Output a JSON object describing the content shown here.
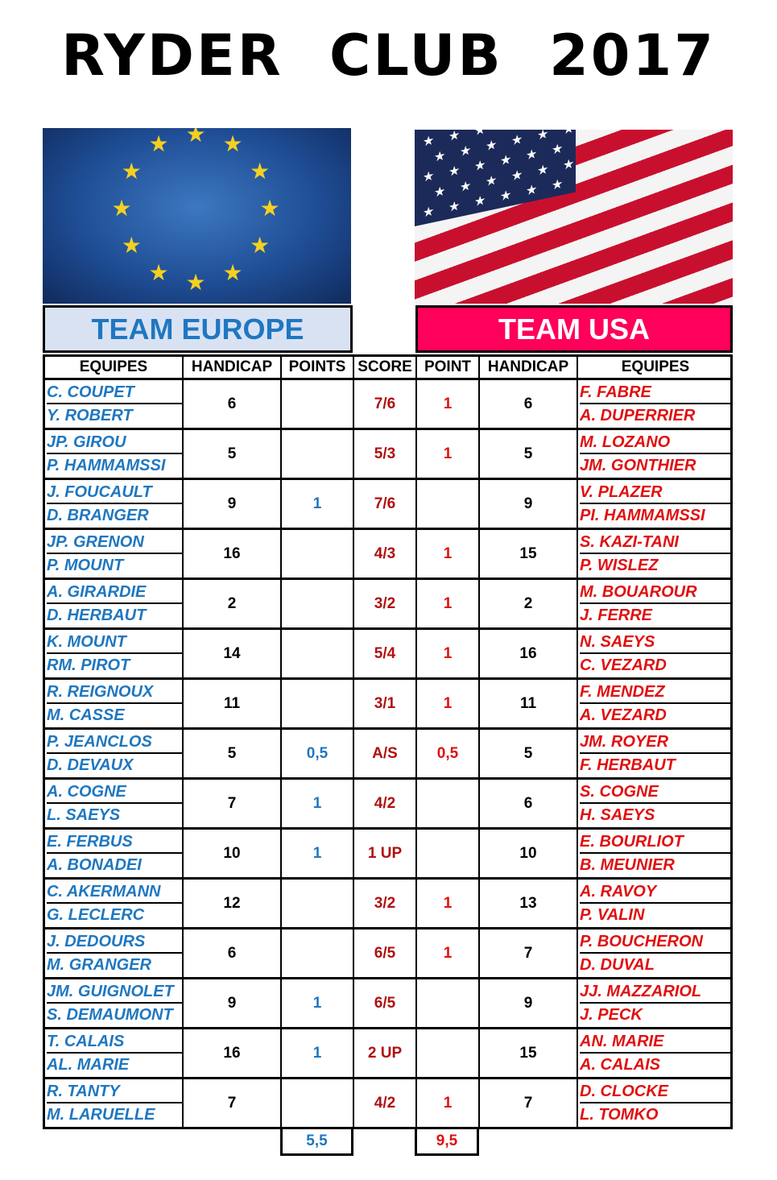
{
  "title": "RYDER CLUB  2017",
  "colors": {
    "europe_blue": "#1f77c0",
    "usa_red": "#e01010",
    "usa_header": "#ff005a",
    "europe_header": "#d9e2f3",
    "score": "#b01010"
  },
  "flags": {
    "left": "eu-flag",
    "right": "us-flag"
  },
  "teams": {
    "europe": "TEAM EUROPE",
    "usa": "TEAM USA"
  },
  "headers": [
    "EQUIPES",
    "HANDICAP",
    "POINTS",
    "SCORE",
    "POINT",
    "HANDICAP",
    "EQUIPES"
  ],
  "matches": [
    {
      "eu": [
        "C. COUPET",
        "Y. ROBERT"
      ],
      "eu_hcp": "6",
      "eu_pts": "",
      "score": "7/6",
      "us_pts": "1",
      "us_hcp": "6",
      "us": [
        "F. FABRE",
        "A. DUPERRIER"
      ]
    },
    {
      "eu": [
        "JP. GIROU",
        "P. HAMMAMSSI"
      ],
      "eu_hcp": "5",
      "eu_pts": "",
      "score": "5/3",
      "us_pts": "1",
      "us_hcp": "5",
      "us": [
        "M. LOZANO",
        "JM. GONTHIER"
      ]
    },
    {
      "eu": [
        "J. FOUCAULT",
        "D. BRANGER"
      ],
      "eu_hcp": "9",
      "eu_pts": "1",
      "score": "7/6",
      "us_pts": "",
      "us_hcp": "9",
      "us": [
        "V. PLAZER",
        "PI. HAMMAMSSI"
      ]
    },
    {
      "eu": [
        "JP. GRENON",
        "P. MOUNT"
      ],
      "eu_hcp": "16",
      "eu_pts": "",
      "score": "4/3",
      "us_pts": "1",
      "us_hcp": "15",
      "us": [
        "S. KAZI-TANI",
        "P. WISLEZ"
      ]
    },
    {
      "eu": [
        "A. GIRARDIE",
        "D. HERBAUT"
      ],
      "eu_hcp": "2",
      "eu_pts": "",
      "score": "3/2",
      "us_pts": "1",
      "us_hcp": "2",
      "us": [
        "M. BOUAROUR",
        "J. FERRE"
      ]
    },
    {
      "eu": [
        "K. MOUNT",
        "RM. PIROT"
      ],
      "eu_hcp": "14",
      "eu_pts": "",
      "score": "5/4",
      "us_pts": "1",
      "us_hcp": "16",
      "us": [
        "N. SAEYS",
        "C. VEZARD"
      ]
    },
    {
      "eu": [
        "R. REIGNOUX",
        "M. CASSE"
      ],
      "eu_hcp": "11",
      "eu_pts": "",
      "score": "3/1",
      "us_pts": "1",
      "us_hcp": "11",
      "us": [
        "F. MENDEZ",
        "A. VEZARD"
      ]
    },
    {
      "eu": [
        "P. JEANCLOS",
        "D. DEVAUX"
      ],
      "eu_hcp": "5",
      "eu_pts": "0,5",
      "score": "A/S",
      "us_pts": "0,5",
      "us_hcp": "5",
      "us": [
        "JM. ROYER",
        "F. HERBAUT"
      ]
    },
    {
      "eu": [
        "A. COGNE",
        "L. SAEYS"
      ],
      "eu_hcp": "7",
      "eu_pts": "1",
      "score": "4/2",
      "us_pts": "",
      "us_hcp": "6",
      "us": [
        "S. COGNE",
        "H. SAEYS"
      ]
    },
    {
      "eu": [
        "E. FERBUS",
        "A. BONADEI"
      ],
      "eu_hcp": "10",
      "eu_pts": "1",
      "score": "1 UP",
      "us_pts": "",
      "us_hcp": "10",
      "us": [
        "E. BOURLIOT",
        "B. MEUNIER"
      ]
    },
    {
      "eu": [
        "C. AKERMANN",
        "G. LECLERC"
      ],
      "eu_hcp": "12",
      "eu_pts": "",
      "score": "3/2",
      "us_pts": "1",
      "us_hcp": "13",
      "us": [
        "A. RAVOY",
        "P. VALIN"
      ]
    },
    {
      "eu": [
        "J. DEDOURS",
        "M. GRANGER"
      ],
      "eu_hcp": "6",
      "eu_pts": "",
      "score": "6/5",
      "us_pts": "1",
      "us_hcp": "7",
      "us": [
        "P. BOUCHERON",
        "D. DUVAL"
      ]
    },
    {
      "eu": [
        "JM. GUIGNOLET",
        "S. DEMAUMONT"
      ],
      "eu_hcp": "9",
      "eu_pts": "1",
      "score": "6/5",
      "us_pts": "",
      "us_hcp": "9",
      "us": [
        "JJ. MAZZARIOL",
        "J. PECK"
      ]
    },
    {
      "eu": [
        "T. CALAIS",
        "AL. MARIE"
      ],
      "eu_hcp": "16",
      "eu_pts": "1",
      "score": "2 UP",
      "us_pts": "",
      "us_hcp": "15",
      "us": [
        "AN. MARIE",
        "A. CALAIS"
      ]
    },
    {
      "eu": [
        "R. TANTY",
        "M. LARUELLE"
      ],
      "eu_hcp": "7",
      "eu_pts": "",
      "score": "4/2",
      "us_pts": "1",
      "us_hcp": "7",
      "us": [
        "D. CLOCKE",
        "L. TOMKO"
      ]
    }
  ],
  "totals": {
    "europe": "5,5",
    "usa": "9,5"
  }
}
